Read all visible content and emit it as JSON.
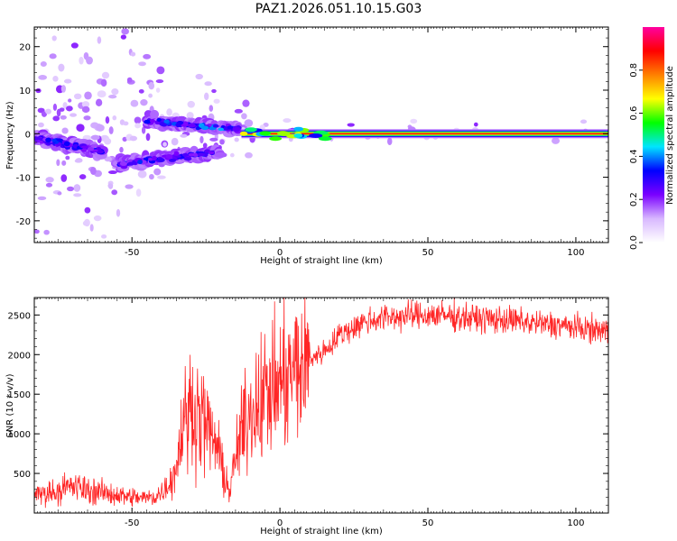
{
  "title": "PAZ1.2026.051.10.15.G03",
  "chart_data": [
    {
      "type": "heatmap",
      "xlabel": "Height of straight line (km)",
      "ylabel": "Frequency (Hz)",
      "xlim": [
        -83,
        111
      ],
      "ylim": [
        -25,
        24.5
      ],
      "xticks": [
        -50,
        0,
        50,
        100
      ],
      "yticks": [
        -20,
        -10,
        0,
        10,
        20
      ],
      "colorbar": {
        "label": "Normalized spectral amplitude",
        "range": [
          0,
          1
        ],
        "ticks": [
          0.0,
          0.2,
          0.4,
          0.6,
          0.8
        ],
        "tick_labels": [
          "0.0",
          "0.2",
          "0.4",
          "0.6",
          "0.8"
        ],
        "colormap": [
          "#ffffff",
          "#d8b8ff",
          "#7a00ff",
          "#0000ff",
          "#00e5ff",
          "#00ff00",
          "#ffff00",
          "#ff8000",
          "#ff0000",
          "#ff00a0"
        ]
      },
      "features": [
        {
          "name": "tone",
          "x_range": [
            -13,
            111
          ],
          "frequency": 0,
          "amplitude": 0.9
        },
        {
          "name": "upper branch",
          "x_range": [
            -45,
            -14
          ],
          "frequency_start": 3,
          "frequency_end": 1,
          "amplitude": 0.35
        },
        {
          "name": "lower branch",
          "x_range": [
            -55,
            -20
          ],
          "frequency_start": -7,
          "frequency_end": -4,
          "amplitude": 0.3
        },
        {
          "name": "left cluster",
          "x_range": [
            -83,
            -60
          ],
          "frequency_start": -1,
          "frequency_end": -4,
          "amplitude": 0.3
        }
      ]
    },
    {
      "type": "line",
      "xlabel": "Height of straight line (km)",
      "ylabel": "SNR (10 * v/v)",
      "xlim": [
        -83,
        111
      ],
      "ylim": [
        0,
        2720
      ],
      "xticks": [
        -50,
        0,
        50,
        100
      ],
      "yticks": [
        500,
        1000,
        1500,
        2000,
        2500
      ],
      "color": "#ff0000",
      "x": [
        -83,
        -75,
        -70,
        -65,
        -60,
        -55,
        -50,
        -45,
        -42,
        -40,
        -37,
        -35,
        -33,
        -30,
        -27,
        -25,
        -22,
        -20,
        -17,
        -15,
        -13,
        -10,
        -7,
        -5,
        -2,
        0,
        3,
        5,
        8,
        10,
        13,
        15,
        18,
        20,
        23,
        25,
        28,
        30,
        33,
        35,
        40,
        45,
        50,
        55,
        60,
        65,
        70,
        75,
        80,
        85,
        90,
        95,
        100,
        105,
        111
      ],
      "y": [
        230,
        280,
        340,
        290,
        260,
        230,
        200,
        190,
        210,
        260,
        400,
        580,
        1100,
        1350,
        1250,
        1100,
        900,
        650,
        250,
        700,
        1000,
        1300,
        1450,
        1500,
        1550,
        1650,
        1700,
        1800,
        1850,
        1950,
        2000,
        2050,
        2150,
        2250,
        2300,
        2350,
        2400,
        2430,
        2450,
        2470,
        2480,
        2490,
        2500,
        2490,
        2480,
        2460,
        2450,
        2440,
        2420,
        2400,
        2380,
        2370,
        2340,
        2320,
        2300
      ]
    }
  ]
}
